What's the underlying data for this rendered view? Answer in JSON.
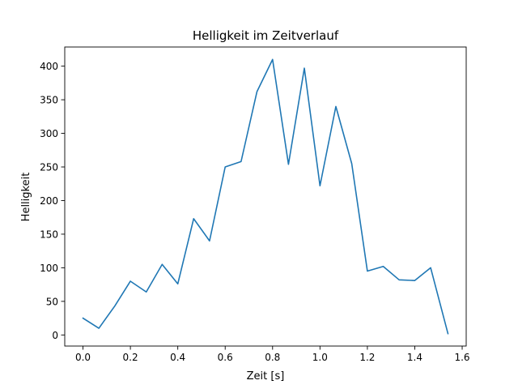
{
  "chart_data": {
    "type": "line",
    "title": "Helligkeit im Zeitverlauf",
    "xlabel": "Zeit [s]",
    "ylabel": "Helligkeit",
    "xlim": [
      -0.077,
      1.617
    ],
    "ylim": [
      -16.5,
      428.5
    ],
    "xticks": [
      0.0,
      0.2,
      0.4,
      0.6,
      0.8,
      1.0,
      1.2,
      1.4,
      1.6
    ],
    "xtick_labels": [
      "0.0",
      "0.2",
      "0.4",
      "0.6",
      "0.8",
      "1.0",
      "1.2",
      "1.4",
      "1.6"
    ],
    "yticks": [
      0,
      50,
      100,
      150,
      200,
      250,
      300,
      350,
      400
    ],
    "ytick_labels": [
      "0",
      "50",
      "100",
      "150",
      "200",
      "250",
      "300",
      "350",
      "400"
    ],
    "grid": false,
    "line_color": "#1f77b4",
    "series": [
      {
        "x": [
          0.0,
          0.067,
          0.134,
          0.2,
          0.267,
          0.334,
          0.4,
          0.467,
          0.534,
          0.6,
          0.667,
          0.734,
          0.8,
          0.867,
          0.934,
          1.0,
          1.067,
          1.134,
          1.2,
          1.267,
          1.334,
          1.4,
          1.467,
          1.54
        ],
        "y": [
          25,
          10,
          43,
          80,
          64,
          105,
          76,
          173,
          140,
          250,
          258,
          362,
          410,
          254,
          397,
          222,
          340,
          255,
          95,
          102,
          82,
          81,
          100,
          2
        ]
      }
    ]
  }
}
